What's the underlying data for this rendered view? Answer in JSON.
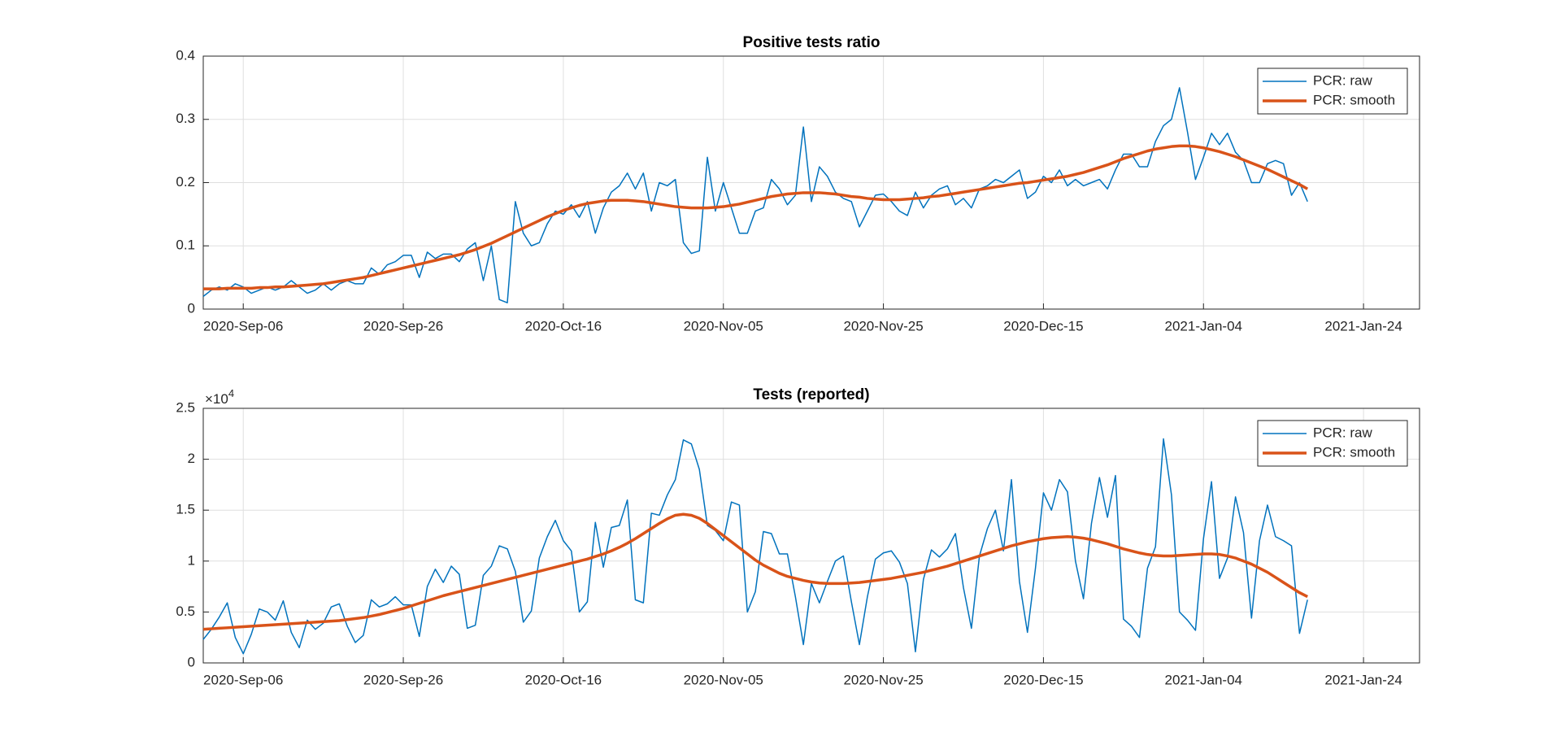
{
  "chart_data": [
    {
      "type": "line",
      "title": "Positive tests ratio",
      "x": [
        "2020-Sep-01",
        "2020-Sep-02",
        "2020-Sep-03",
        "2020-Sep-04",
        "2020-Sep-05",
        "2020-Sep-06",
        "2020-Sep-07",
        "2020-Sep-08",
        "2020-Sep-09",
        "2020-Sep-10",
        "2020-Sep-11",
        "2020-Sep-12",
        "2020-Sep-13",
        "2020-Sep-14",
        "2020-Sep-15",
        "2020-Sep-16",
        "2020-Sep-17",
        "2020-Sep-18",
        "2020-Sep-19",
        "2020-Sep-20",
        "2020-Sep-21",
        "2020-Sep-22",
        "2020-Sep-23",
        "2020-Sep-24",
        "2020-Sep-25",
        "2020-Sep-26",
        "2020-Sep-27",
        "2020-Sep-28",
        "2020-Sep-29",
        "2020-Sep-30",
        "2020-Oct-01",
        "2020-Oct-02",
        "2020-Oct-03",
        "2020-Oct-04",
        "2020-Oct-05",
        "2020-Oct-06",
        "2020-Oct-07",
        "2020-Oct-08",
        "2020-Oct-09",
        "2020-Oct-10",
        "2020-Oct-11",
        "2020-Oct-12",
        "2020-Oct-13",
        "2020-Oct-14",
        "2020-Oct-15",
        "2020-Oct-16",
        "2020-Oct-17",
        "2020-Oct-18",
        "2020-Oct-19",
        "2020-Oct-20",
        "2020-Oct-21",
        "2020-Oct-22",
        "2020-Oct-23",
        "2020-Oct-24",
        "2020-Oct-25",
        "2020-Oct-26",
        "2020-Oct-27",
        "2020-Oct-28",
        "2020-Oct-29",
        "2020-Oct-30",
        "2020-Oct-31",
        "2020-Nov-01",
        "2020-Nov-02",
        "2020-Nov-03",
        "2020-Nov-04",
        "2020-Nov-05",
        "2020-Nov-06",
        "2020-Nov-07",
        "2020-Nov-08",
        "2020-Nov-09",
        "2020-Nov-10",
        "2020-Nov-11",
        "2020-Nov-12",
        "2020-Nov-13",
        "2020-Nov-14",
        "2020-Nov-15",
        "2020-Nov-16",
        "2020-Nov-17",
        "2020-Nov-18",
        "2020-Nov-19",
        "2020-Nov-20",
        "2020-Nov-21",
        "2020-Nov-22",
        "2020-Nov-23",
        "2020-Nov-24",
        "2020-Nov-25",
        "2020-Nov-26",
        "2020-Nov-27",
        "2020-Nov-28",
        "2020-Nov-29",
        "2020-Nov-30",
        "2020-Dec-01",
        "2020-Dec-02",
        "2020-Dec-03",
        "2020-Dec-04",
        "2020-Dec-05",
        "2020-Dec-06",
        "2020-Dec-07",
        "2020-Dec-08",
        "2020-Dec-09",
        "2020-Dec-10",
        "2020-Dec-11",
        "2020-Dec-12",
        "2020-Dec-13",
        "2020-Dec-14",
        "2020-Dec-15",
        "2020-Dec-16",
        "2020-Dec-17",
        "2020-Dec-18",
        "2020-Dec-19",
        "2020-Dec-20",
        "2020-Dec-21",
        "2020-Dec-22",
        "2020-Dec-23",
        "2020-Dec-24",
        "2020-Dec-25",
        "2020-Dec-26",
        "2020-Dec-27",
        "2020-Dec-28",
        "2020-Dec-29",
        "2020-Dec-30",
        "2020-Dec-31",
        "2021-Jan-01",
        "2021-Jan-02",
        "2021-Jan-03",
        "2021-Jan-04",
        "2021-Jan-05",
        "2021-Jan-06",
        "2021-Jan-07",
        "2021-Jan-08",
        "2021-Jan-09",
        "2021-Jan-10",
        "2021-Jan-11",
        "2021-Jan-12",
        "2021-Jan-13",
        "2021-Jan-14",
        "2021-Jan-15",
        "2021-Jan-16",
        "2021-Jan-17"
      ],
      "series": [
        {
          "name": "PCR: raw",
          "color": "#0072bd",
          "line_width": 1.5,
          "values": [
            0.02,
            0.03,
            0.035,
            0.03,
            0.04,
            0.035,
            0.025,
            0.03,
            0.035,
            0.03,
            0.035,
            0.045,
            0.035,
            0.025,
            0.03,
            0.04,
            0.03,
            0.04,
            0.045,
            0.04,
            0.04,
            0.065,
            0.055,
            0.07,
            0.075,
            0.085,
            0.085,
            0.05,
            0.09,
            0.08,
            0.087,
            0.087,
            0.075,
            0.095,
            0.105,
            0.045,
            0.1,
            0.015,
            0.01,
            0.17,
            0.12,
            0.1,
            0.105,
            0.135,
            0.155,
            0.15,
            0.165,
            0.145,
            0.17,
            0.12,
            0.16,
            0.185,
            0.195,
            0.215,
            0.19,
            0.215,
            0.155,
            0.2,
            0.195,
            0.205,
            0.105,
            0.088,
            0.092,
            0.24,
            0.155,
            0.2,
            0.16,
            0.12,
            0.12,
            0.155,
            0.16,
            0.205,
            0.19,
            0.165,
            0.18,
            0.288,
            0.17,
            0.225,
            0.21,
            0.185,
            0.175,
            0.17,
            0.13,
            0.155,
            0.18,
            0.182,
            0.17,
            0.155,
            0.148,
            0.185,
            0.16,
            0.18,
            0.19,
            0.195,
            0.165,
            0.175,
            0.16,
            0.19,
            0.195,
            0.205,
            0.2,
            0.21,
            0.22,
            0.175,
            0.185,
            0.21,
            0.2,
            0.22,
            0.195,
            0.205,
            0.195,
            0.2,
            0.205,
            0.19,
            0.22,
            0.245,
            0.245,
            0.225,
            0.225,
            0.265,
            0.29,
            0.3,
            0.35,
            0.28,
            0.205,
            0.24,
            0.278,
            0.26,
            0.278,
            0.248,
            0.235,
            0.2,
            0.2,
            0.23,
            0.235,
            0.23,
            0.18,
            0.2,
            0.17
          ]
        },
        {
          "name": "PCR: smooth",
          "color": "#d95319",
          "line_width": 3.5,
          "values": [
            0.032,
            0.032,
            0.032,
            0.033,
            0.033,
            0.033,
            0.033,
            0.034,
            0.034,
            0.035,
            0.035,
            0.036,
            0.037,
            0.038,
            0.039,
            0.04,
            0.042,
            0.044,
            0.046,
            0.048,
            0.05,
            0.053,
            0.056,
            0.059,
            0.062,
            0.065,
            0.068,
            0.071,
            0.074,
            0.077,
            0.08,
            0.083,
            0.086,
            0.09,
            0.094,
            0.099,
            0.104,
            0.11,
            0.116,
            0.122,
            0.128,
            0.134,
            0.14,
            0.146,
            0.151,
            0.156,
            0.16,
            0.164,
            0.167,
            0.169,
            0.171,
            0.172,
            0.172,
            0.172,
            0.171,
            0.17,
            0.168,
            0.166,
            0.164,
            0.162,
            0.161,
            0.16,
            0.16,
            0.16,
            0.161,
            0.162,
            0.164,
            0.166,
            0.169,
            0.172,
            0.175,
            0.178,
            0.18,
            0.182,
            0.183,
            0.184,
            0.184,
            0.184,
            0.183,
            0.182,
            0.18,
            0.178,
            0.177,
            0.175,
            0.174,
            0.173,
            0.173,
            0.173,
            0.174,
            0.175,
            0.176,
            0.178,
            0.179,
            0.181,
            0.183,
            0.185,
            0.187,
            0.189,
            0.191,
            0.193,
            0.195,
            0.197,
            0.199,
            0.2,
            0.202,
            0.204,
            0.206,
            0.208,
            0.21,
            0.213,
            0.216,
            0.22,
            0.224,
            0.228,
            0.233,
            0.238,
            0.242,
            0.246,
            0.25,
            0.253,
            0.255,
            0.257,
            0.258,
            0.258,
            0.257,
            0.255,
            0.252,
            0.249,
            0.245,
            0.241,
            0.236,
            0.231,
            0.226,
            0.221,
            0.215,
            0.209,
            0.203,
            0.197,
            0.19
          ]
        }
      ],
      "xlim": [
        "2020-Sep-01",
        "2021-Jan-31"
      ],
      "xticks": [
        "2020-Sep-06",
        "2020-Sep-26",
        "2020-Oct-16",
        "2020-Nov-05",
        "2020-Nov-25",
        "2020-Dec-15",
        "2021-Jan-04",
        "2021-Jan-24"
      ],
      "ylim": [
        0,
        0.4
      ],
      "yticks": [
        0,
        0.1,
        0.2,
        0.3,
        0.4
      ],
      "grid": true,
      "legend": "northeast"
    },
    {
      "type": "line",
      "title": "Tests (reported)",
      "x": [
        "2020-Sep-01",
        "2020-Sep-02",
        "2020-Sep-03",
        "2020-Sep-04",
        "2020-Sep-05",
        "2020-Sep-06",
        "2020-Sep-07",
        "2020-Sep-08",
        "2020-Sep-09",
        "2020-Sep-10",
        "2020-Sep-11",
        "2020-Sep-12",
        "2020-Sep-13",
        "2020-Sep-14",
        "2020-Sep-15",
        "2020-Sep-16",
        "2020-Sep-17",
        "2020-Sep-18",
        "2020-Sep-19",
        "2020-Sep-20",
        "2020-Sep-21",
        "2020-Sep-22",
        "2020-Sep-23",
        "2020-Sep-24",
        "2020-Sep-25",
        "2020-Sep-26",
        "2020-Sep-27",
        "2020-Sep-28",
        "2020-Sep-29",
        "2020-Sep-30",
        "2020-Oct-01",
        "2020-Oct-02",
        "2020-Oct-03",
        "2020-Oct-04",
        "2020-Oct-05",
        "2020-Oct-06",
        "2020-Oct-07",
        "2020-Oct-08",
        "2020-Oct-09",
        "2020-Oct-10",
        "2020-Oct-11",
        "2020-Oct-12",
        "2020-Oct-13",
        "2020-Oct-14",
        "2020-Oct-15",
        "2020-Oct-16",
        "2020-Oct-17",
        "2020-Oct-18",
        "2020-Oct-19",
        "2020-Oct-20",
        "2020-Oct-21",
        "2020-Oct-22",
        "2020-Oct-23",
        "2020-Oct-24",
        "2020-Oct-25",
        "2020-Oct-26",
        "2020-Oct-27",
        "2020-Oct-28",
        "2020-Oct-29",
        "2020-Oct-30",
        "2020-Oct-31",
        "2020-Nov-01",
        "2020-Nov-02",
        "2020-Nov-03",
        "2020-Nov-04",
        "2020-Nov-05",
        "2020-Nov-06",
        "2020-Nov-07",
        "2020-Nov-08",
        "2020-Nov-09",
        "2020-Nov-10",
        "2020-Nov-11",
        "2020-Nov-12",
        "2020-Nov-13",
        "2020-Nov-14",
        "2020-Nov-15",
        "2020-Nov-16",
        "2020-Nov-17",
        "2020-Nov-18",
        "2020-Nov-19",
        "2020-Nov-20",
        "2020-Nov-21",
        "2020-Nov-22",
        "2020-Nov-23",
        "2020-Nov-24",
        "2020-Nov-25",
        "2020-Nov-26",
        "2020-Nov-27",
        "2020-Nov-28",
        "2020-Nov-29",
        "2020-Nov-30",
        "2020-Dec-01",
        "2020-Dec-02",
        "2020-Dec-03",
        "2020-Dec-04",
        "2020-Dec-05",
        "2020-Dec-06",
        "2020-Dec-07",
        "2020-Dec-08",
        "2020-Dec-09",
        "2020-Dec-10",
        "2020-Dec-11",
        "2020-Dec-12",
        "2020-Dec-13",
        "2020-Dec-14",
        "2020-Dec-15",
        "2020-Dec-16",
        "2020-Dec-17",
        "2020-Dec-18",
        "2020-Dec-19",
        "2020-Dec-20",
        "2020-Dec-21",
        "2020-Dec-22",
        "2020-Dec-23",
        "2020-Dec-24",
        "2020-Dec-25",
        "2020-Dec-26",
        "2020-Dec-27",
        "2020-Dec-28",
        "2020-Dec-29",
        "2020-Dec-30",
        "2020-Dec-31",
        "2021-Jan-01",
        "2021-Jan-02",
        "2021-Jan-03",
        "2021-Jan-04",
        "2021-Jan-05",
        "2021-Jan-06",
        "2021-Jan-07",
        "2021-Jan-08",
        "2021-Jan-09",
        "2021-Jan-10",
        "2021-Jan-11",
        "2021-Jan-12",
        "2021-Jan-13",
        "2021-Jan-14",
        "2021-Jan-15",
        "2021-Jan-16",
        "2021-Jan-17"
      ],
      "series": [
        {
          "name": "PCR: raw",
          "color": "#0072bd",
          "line_width": 1.5,
          "values": [
            2300,
            3300,
            4500,
            5900,
            2500,
            900,
            2800,
            5300,
            5000,
            4200,
            6100,
            3000,
            1500,
            4200,
            3300,
            3900,
            5500,
            5800,
            3600,
            2000,
            2700,
            6200,
            5500,
            5800,
            6500,
            5700,
            5700,
            2600,
            7500,
            9200,
            7900,
            9500,
            8700,
            3400,
            3700,
            8600,
            9500,
            11500,
            11200,
            9000,
            4000,
            5100,
            10300,
            12400,
            14000,
            12000,
            11000,
            5000,
            6000,
            13800,
            9400,
            13300,
            13500,
            16000,
            6200,
            5900,
            14700,
            14500,
            16500,
            18000,
            21900,
            21500,
            19000,
            13500,
            13000,
            12000,
            15800,
            15500,
            5000,
            7000,
            12900,
            12700,
            10700,
            10700,
            6500,
            1800,
            7800,
            5900,
            8000,
            10000,
            10500,
            6000,
            1800,
            6500,
            10200,
            10800,
            11000,
            9900,
            7800,
            1100,
            8200,
            11100,
            10400,
            11200,
            12700,
            7400,
            3400,
            10500,
            13200,
            15000,
            11000,
            18000,
            8000,
            3000,
            9300,
            16700,
            15000,
            18000,
            16800,
            10000,
            6300,
            13700,
            18200,
            14300,
            18400,
            4300,
            3600,
            2500,
            9300,
            11400,
            22000,
            16500,
            5000,
            4200,
            3200,
            12200,
            17800,
            8300,
            10300,
            16300,
            12800,
            4400,
            12000,
            15500,
            12400,
            12000,
            11500,
            2900,
            6200
          ]
        },
        {
          "name": "PCR: smooth",
          "color": "#d95319",
          "line_width": 3.5,
          "values": [
            3300,
            3350,
            3400,
            3450,
            3500,
            3550,
            3600,
            3650,
            3700,
            3750,
            3800,
            3850,
            3900,
            3950,
            4000,
            4050,
            4100,
            4150,
            4250,
            4350,
            4450,
            4600,
            4750,
            4950,
            5150,
            5350,
            5600,
            5850,
            6100,
            6350,
            6600,
            6800,
            7000,
            7200,
            7400,
            7600,
            7800,
            8000,
            8200,
            8400,
            8600,
            8800,
            9000,
            9200,
            9400,
            9600,
            9800,
            10000,
            10200,
            10450,
            10700,
            11000,
            11350,
            11750,
            12200,
            12700,
            13200,
            13700,
            14150,
            14500,
            14600,
            14500,
            14200,
            13700,
            13100,
            12500,
            11900,
            11300,
            10700,
            10100,
            9600,
            9200,
            8800,
            8500,
            8300,
            8100,
            7950,
            7850,
            7800,
            7800,
            7800,
            7850,
            7900,
            8000,
            8100,
            8200,
            8300,
            8450,
            8600,
            8750,
            8900,
            9100,
            9300,
            9500,
            9750,
            10000,
            10250,
            10500,
            10750,
            11000,
            11250,
            11500,
            11700,
            11900,
            12050,
            12200,
            12300,
            12350,
            12400,
            12350,
            12250,
            12100,
            11900,
            11700,
            11450,
            11200,
            11000,
            10800,
            10650,
            10550,
            10500,
            10500,
            10550,
            10600,
            10650,
            10700,
            10700,
            10650,
            10500,
            10300,
            10000,
            9700,
            9300,
            8900,
            8400,
            7900,
            7400,
            6900,
            6500
          ]
        }
      ],
      "xlim": [
        "2020-Sep-01",
        "2021-Jan-31"
      ],
      "xticks": [
        "2020-Sep-06",
        "2020-Sep-26",
        "2020-Oct-16",
        "2020-Nov-05",
        "2020-Nov-25",
        "2020-Dec-15",
        "2021-Jan-04",
        "2021-Jan-24"
      ],
      "ylim": [
        0,
        25000
      ],
      "yticks": [
        0,
        {
          "value": 5000,
          "label": "0.5"
        },
        {
          "value": 10000,
          "label": "1"
        },
        {
          "value": 15000,
          "label": "1.5"
        },
        {
          "value": 20000,
          "label": "2"
        },
        {
          "value": 25000,
          "label": "2.5"
        }
      ],
      "y_exponent": {
        "base": "×10",
        "power": "4"
      },
      "grid": true,
      "legend": "northeast"
    }
  ]
}
